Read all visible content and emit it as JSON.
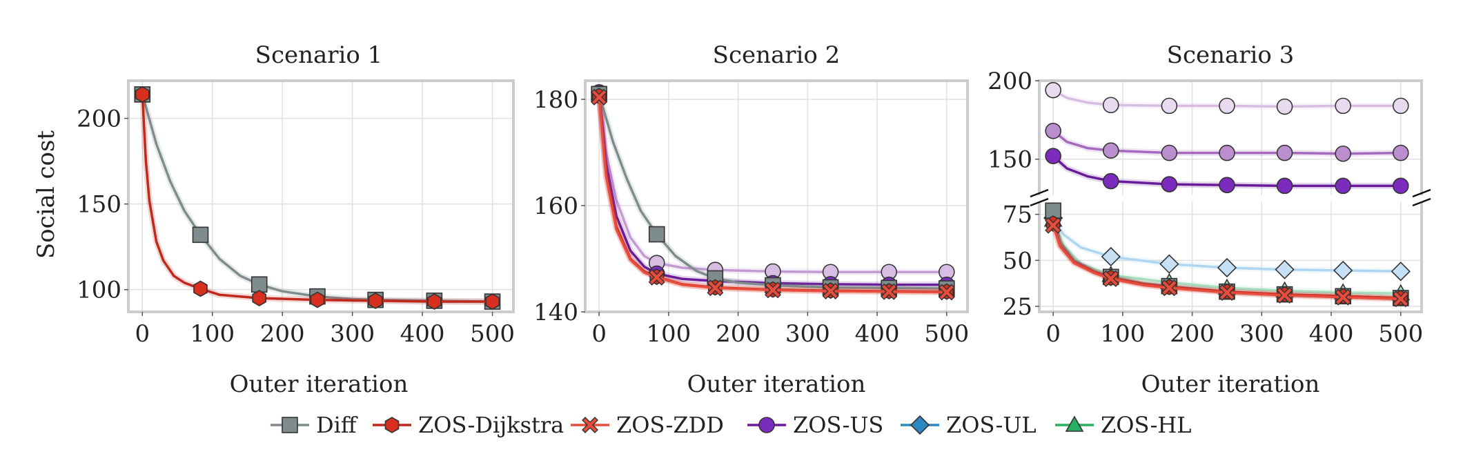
{
  "figure": {
    "y_label": "Social cost",
    "legend": [
      "Diff",
      "ZOS-Dijkstra",
      "ZOS-ZDD",
      "ZOS-US",
      "ZOS-UL",
      "ZOS-HL"
    ]
  },
  "styles": {
    "Diff": {
      "color": "#7f8c8d",
      "marker": "square",
      "fill": "#7f8c8d"
    },
    "ZOS-Dijkstra": {
      "color": "#c0281c",
      "marker": "hexagon",
      "fill": "#d7301f"
    },
    "ZOS-ZDD": {
      "color": "#e74c3c",
      "marker": "x",
      "fill": "#e74c3c"
    },
    "ZOS-US": {
      "color": "#6a1b9a",
      "marker": "circle",
      "fill": "#7b2cbf"
    },
    "ZOS-UL": {
      "color": "#2e86c1",
      "marker": "diamond",
      "fill": "#2e86c1"
    },
    "ZOS-HL": {
      "color": "#27ae60",
      "marker": "triangle",
      "fill": "#27ae60"
    }
  },
  "chart_data": [
    {
      "type": "line",
      "title": "Scenario 1",
      "xlabel": "Outer iteration",
      "ylabel": "Social cost",
      "xlim": [
        -20,
        530
      ],
      "ylim": [
        87,
        222
      ],
      "xticks": [
        0,
        100,
        200,
        300,
        400,
        500
      ],
      "yticks": [
        100,
        150,
        200
      ],
      "series": [
        {
          "name": "Diff",
          "color": "#7f8c8d",
          "fill": "#7f8c8d",
          "marker": "square",
          "opacity": 1,
          "x": [
            0,
            20,
            40,
            60,
            83,
            110,
            140,
            167,
            200,
            250,
            300,
            333,
            417,
            500
          ],
          "y": [
            214,
            185,
            163,
            146,
            132,
            118,
            108,
            103,
            99,
            96,
            94.5,
            94,
            93.5,
            93
          ]
        },
        {
          "name": "ZOS-Dijkstra",
          "color": "#c0281c",
          "fill": "#d7301f",
          "marker": "hexagon",
          "opacity": 1,
          "x": [
            0,
            5,
            10,
            20,
            30,
            45,
            60,
            83,
            110,
            167,
            250,
            333,
            417,
            500
          ],
          "y": [
            214,
            175,
            152,
            128,
            117,
            108,
            104,
            100.5,
            97,
            95,
            94,
            93.5,
            93,
            93
          ]
        }
      ]
    },
    {
      "type": "line",
      "title": "Scenario 2",
      "xlabel": "Outer iteration",
      "ylabel": "",
      "xlim": [
        -20,
        530
      ],
      "ylim": [
        140,
        183.5
      ],
      "xticks": [
        0,
        100,
        200,
        300,
        400,
        500
      ],
      "yticks": [
        140,
        160,
        180
      ],
      "series": [
        {
          "name": "ZOS-US (light)",
          "color": "#c39bd3",
          "fill": "#d7bde2",
          "marker": "circle",
          "opacity": 1,
          "x": [
            0,
            10,
            25,
            45,
            65,
            83,
            120,
            167,
            250,
            333,
            417,
            500
          ],
          "y": [
            181.3,
            170,
            161,
            154,
            150.5,
            149.2,
            148.3,
            147.9,
            147.6,
            147.5,
            147.5,
            147.5
          ]
        },
        {
          "name": "ZOS-US",
          "color": "#6a1b9a",
          "fill": "#7b2cbf",
          "marker": "circle",
          "opacity": 1,
          "x": [
            0,
            10,
            25,
            45,
            65,
            83,
            120,
            167,
            250,
            333,
            417,
            500
          ],
          "y": [
            181.3,
            168,
            158,
            151.5,
            148.5,
            147.2,
            146.2,
            145.8,
            145.4,
            145.2,
            145.1,
            145.1
          ]
        },
        {
          "name": "Diff",
          "color": "#7f8c8d",
          "fill": "#7f8c8d",
          "marker": "square",
          "opacity": 1,
          "x": [
            0,
            20,
            40,
            60,
            83,
            110,
            140,
            167,
            200,
            250,
            333,
            417,
            500
          ],
          "y": [
            181,
            172,
            165,
            159,
            154.6,
            150.5,
            147.7,
            146.3,
            145.5,
            145,
            144.6,
            144.5,
            144.4
          ]
        },
        {
          "name": "ZOS-Dijkstra",
          "color": "#c0281c",
          "fill": "#d7301f",
          "marker": "hexagon",
          "opacity": 1,
          "x": [
            0,
            10,
            25,
            45,
            65,
            83,
            120,
            167,
            250,
            333,
            417,
            500
          ],
          "y": [
            180.6,
            166,
            156,
            150,
            147.6,
            146.6,
            145.2,
            144.6,
            144.2,
            144,
            143.9,
            143.8
          ]
        },
        {
          "name": "ZOS-ZDD",
          "color": "#e74c3c",
          "fill": "#e74c3c",
          "marker": "x",
          "opacity": 1,
          "x": [
            0,
            10,
            25,
            45,
            65,
            83,
            120,
            167,
            250,
            333,
            417,
            500
          ],
          "y": [
            180.4,
            165.5,
            155.5,
            149.8,
            147.4,
            146.5,
            145.1,
            144.5,
            144.1,
            143.9,
            143.8,
            143.7
          ]
        }
      ]
    },
    {
      "type": "line",
      "title": "Scenario 3",
      "xlabel": "Outer iteration",
      "ylabel": "",
      "broken_axis": true,
      "xlim": [
        -20,
        530
      ],
      "ylim_top": [
        127,
        200
      ],
      "ylim_bottom": [
        22,
        82
      ],
      "xticks": [
        0,
        100,
        200,
        300,
        400,
        500
      ],
      "yticks_top": [
        150,
        200
      ],
      "yticks_bottom": [
        25,
        50,
        75
      ],
      "series_top": [
        {
          "name": "ZOS-US (lightest)",
          "color": "#d7bde2",
          "fill": "#e8daef",
          "marker": "circle",
          "opacity": 1,
          "x": [
            0,
            20,
            50,
            83,
            167,
            250,
            333,
            417,
            500
          ],
          "y": [
            194,
            189,
            186,
            184.5,
            184,
            184,
            183.5,
            184,
            184
          ]
        },
        {
          "name": "ZOS-US (medium)",
          "color": "#a569bd",
          "fill": "#bb8fce",
          "marker": "circle",
          "opacity": 1,
          "x": [
            0,
            20,
            50,
            83,
            167,
            250,
            333,
            417,
            500
          ],
          "y": [
            168,
            161,
            157,
            155.5,
            154,
            154,
            154,
            153.5,
            154
          ]
        },
        {
          "name": "ZOS-US",
          "color": "#6a1b9a",
          "fill": "#7b2cbf",
          "marker": "circle",
          "opacity": 1,
          "x": [
            0,
            20,
            50,
            83,
            167,
            250,
            333,
            417,
            500
          ],
          "y": [
            152,
            144,
            139,
            136,
            134,
            133.5,
            133,
            133,
            133
          ]
        }
      ],
      "series_bottom": [
        {
          "name": "ZOS-UL (light)",
          "color": "#aed6f1",
          "fill": "#c6e0f5",
          "marker": "diamond",
          "opacity": 1,
          "x": [
            0,
            15,
            40,
            83,
            167,
            250,
            333,
            417,
            500
          ],
          "y": [
            73,
            64,
            57,
            52,
            48,
            46,
            45,
            44.5,
            44
          ]
        },
        {
          "name": "ZOS-HL (light)",
          "color": "#a9dfbf",
          "fill": "#a9dfbf",
          "marker": "triangle",
          "opacity": 1,
          "x": [
            0,
            15,
            40,
            83,
            167,
            250,
            333,
            417,
            500
          ],
          "y": [
            72,
            58,
            48,
            42,
            38,
            35,
            33.5,
            32.5,
            32
          ]
        },
        {
          "name": "Diff",
          "color": "#7f8c8d",
          "fill": "#7f8c8d",
          "marker": "square",
          "opacity": 1,
          "x": [
            0,
            10,
            30,
            60,
            83,
            130,
            167,
            250,
            333,
            417,
            500
          ],
          "y": [
            77,
            60,
            50,
            44,
            41,
            37.5,
            36,
            33,
            31.5,
            30.5,
            29.5
          ]
        },
        {
          "name": "ZOS-Dijkstra",
          "color": "#c0281c",
          "fill": "#d7301f",
          "marker": "hexagon",
          "opacity": 1,
          "x": [
            0,
            10,
            30,
            60,
            83,
            130,
            167,
            250,
            333,
            417,
            500
          ],
          "y": [
            70,
            58,
            49,
            43.5,
            40.5,
            37,
            35.5,
            33,
            31.5,
            30.5,
            29.5
          ]
        },
        {
          "name": "ZOS-ZDD",
          "color": "#e74c3c",
          "fill": "#e74c3c",
          "marker": "x",
          "opacity": 1,
          "x": [
            0,
            10,
            30,
            60,
            83,
            130,
            167,
            250,
            333,
            417,
            500
          ],
          "y": [
            69,
            57.5,
            48.5,
            43,
            40,
            36.5,
            35,
            32.5,
            31,
            30,
            29
          ]
        }
      ]
    }
  ]
}
